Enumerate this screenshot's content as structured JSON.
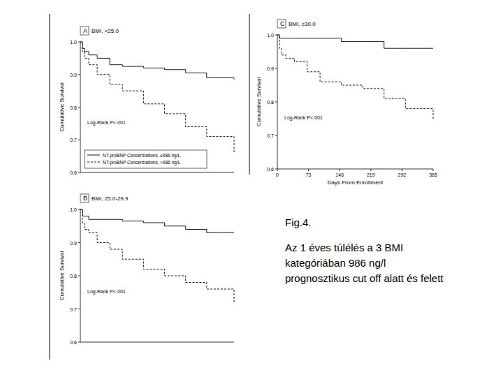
{
  "chart_data": [
    {
      "type": "step",
      "panel": "A",
      "title": "BMI, <25.0",
      "y_label": "Cumulative Survival",
      "annotation": "Log-Rank P<.001",
      "x": [
        0,
        5,
        10,
        20,
        40,
        70,
        100,
        150,
        200,
        250,
        300,
        365
      ],
      "series": [
        {
          "name": "NT-proBNP Concentrations, ≤986 ng/L",
          "color": "#000000",
          "line_style": "solid",
          "values": [
            1.0,
            0.98,
            0.97,
            0.96,
            0.95,
            0.93,
            0.925,
            0.92,
            0.915,
            0.905,
            0.89,
            0.885
          ]
        },
        {
          "name": "NT-proBNP Concentrations, >986 ng/L",
          "color": "#000000",
          "line_style": "dashed",
          "values": [
            1.0,
            0.97,
            0.95,
            0.93,
            0.9,
            0.87,
            0.85,
            0.81,
            0.78,
            0.74,
            0.71,
            0.66
          ]
        }
      ],
      "xlim": [
        0,
        365
      ],
      "ylim": [
        0.6,
        1.0
      ],
      "yticks": [
        {
          "value": 0.6,
          "label": "0.6"
        },
        {
          "value": 0.7,
          "label": "0.7"
        },
        {
          "value": 0.8,
          "label": "0.8"
        },
        {
          "value": 0.9,
          "label": "0.9"
        },
        {
          "value": 1.0,
          "label": "1.0"
        }
      ],
      "tick_labels": "y",
      "legend": "bottom-left",
      "grid": false
    },
    {
      "type": "step",
      "panel": "B",
      "title": "BMI, 25.0-29.9",
      "y_label": "Cumulative Survival",
      "annotation": "Log-Rank P<.001",
      "x": [
        0,
        5,
        10,
        20,
        40,
        70,
        100,
        150,
        200,
        250,
        300,
        365
      ],
      "series": [
        {
          "name": "NT-proBNP Concentrations, ≤986 ng/L",
          "color": "#000000",
          "line_style": "solid",
          "values": [
            1.0,
            0.98,
            0.98,
            0.97,
            0.97,
            0.97,
            0.965,
            0.96,
            0.95,
            0.94,
            0.93,
            0.93
          ]
        },
        {
          "name": "NT-proBNP Concentrations, >986 ng/L",
          "color": "#000000",
          "line_style": "dashed",
          "values": [
            1.0,
            0.96,
            0.94,
            0.93,
            0.9,
            0.88,
            0.85,
            0.82,
            0.8,
            0.78,
            0.76,
            0.72
          ]
        }
      ],
      "xlim": [
        0,
        365
      ],
      "ylim": [
        0.6,
        1.0
      ],
      "yticks": [
        {
          "value": 0.6,
          "label": "0.6"
        },
        {
          "value": 0.7,
          "label": "0.7"
        },
        {
          "value": 0.8,
          "label": "0.8"
        },
        {
          "value": 0.9,
          "label": "0.9"
        },
        {
          "value": 1.0,
          "label": "1.0"
        }
      ],
      "tick_labels": "y",
      "grid": false
    },
    {
      "type": "step",
      "panel": "C",
      "title": "BMI, ≥30.0",
      "y_label": "Cumulative Survival",
      "x_label": "Days From Enrollment",
      "annotation": "Log-Rank P<.001",
      "x": [
        0,
        5,
        10,
        20,
        40,
        70,
        100,
        150,
        200,
        250,
        300,
        365
      ],
      "series": [
        {
          "name": "NT-proBNP Concentrations, ≤986 ng/L",
          "color": "#000000",
          "line_style": "solid",
          "values": [
            1.0,
            0.99,
            0.99,
            0.99,
            0.99,
            0.99,
            0.99,
            0.98,
            0.98,
            0.96,
            0.96,
            0.96
          ]
        },
        {
          "name": "NT-proBNP Concentrations, >986 ng/L",
          "color": "#000000",
          "line_style": "dashed",
          "values": [
            1.0,
            0.96,
            0.94,
            0.93,
            0.92,
            0.89,
            0.86,
            0.85,
            0.84,
            0.81,
            0.78,
            0.75
          ]
        }
      ],
      "xlim": [
        0,
        365
      ],
      "ylim": [
        0.6,
        1.0
      ],
      "xticks": [
        0,
        73,
        146,
        219,
        292,
        365
      ],
      "yticks": [
        {
          "value": 0.6,
          "label": "0.6"
        },
        {
          "value": 0.7,
          "label": "0.7"
        },
        {
          "value": 0.8,
          "label": "0.8"
        },
        {
          "value": 0.9,
          "label": "0.9"
        },
        {
          "value": 1.0,
          "label": "1.0"
        }
      ],
      "grid": false
    }
  ],
  "caption": {
    "figure": "Fig.4.",
    "text": "Az 1 éves túlélés a 3 BMI kategóriában  986 ng/l prognosztikus cut off alatt és felett"
  }
}
